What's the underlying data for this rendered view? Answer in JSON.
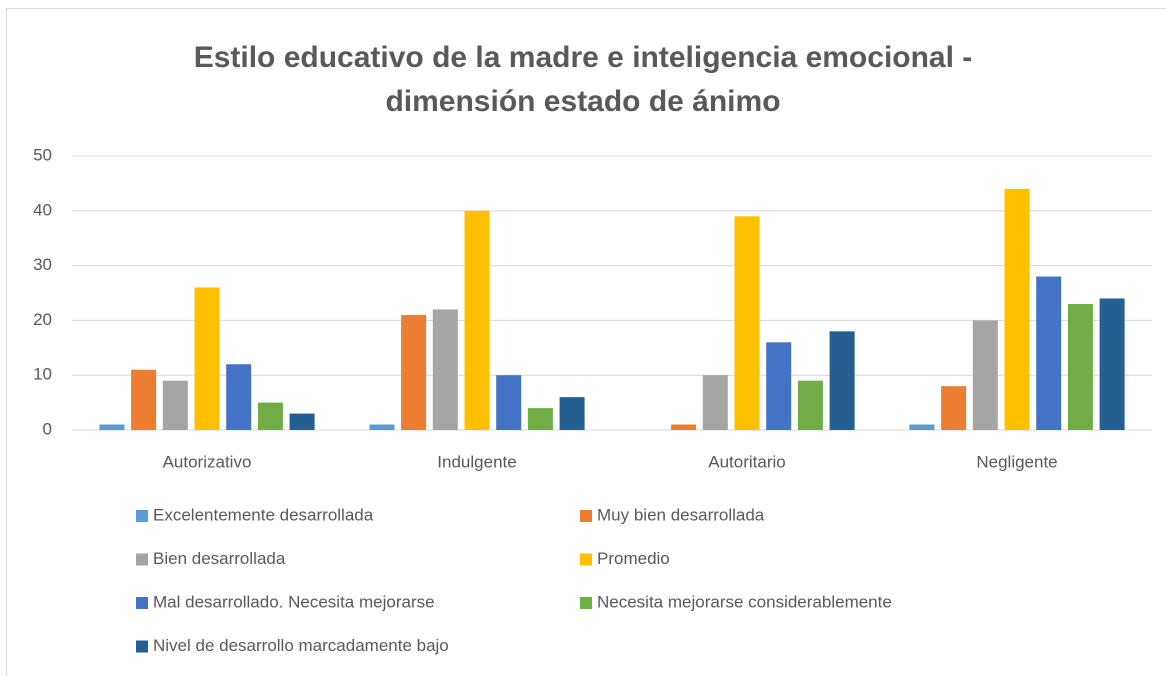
{
  "chart_data": {
    "type": "bar",
    "title": "Estilo educativo de la madre e inteligencia emocional - dimensión estado de ánimo",
    "categories": [
      "Autorizativo",
      "Indulgente",
      "Autoritario",
      "Negligente"
    ],
    "series": [
      {
        "name": "Excelentemente desarrollada",
        "color": "#5b9bd5",
        "values": [
          1,
          1,
          0,
          1
        ]
      },
      {
        "name": "Muy bien desarrollada",
        "color": "#ed7d31",
        "values": [
          11,
          21,
          1,
          8
        ]
      },
      {
        "name": "Bien desarrollada",
        "color": "#a5a5a5",
        "values": [
          9,
          22,
          10,
          20
        ]
      },
      {
        "name": "Promedio",
        "color": "#ffc000",
        "values": [
          26,
          40,
          39,
          44
        ]
      },
      {
        "name": "Mal desarrollado. Necesita mejorarse",
        "color": "#4472c4",
        "values": [
          12,
          10,
          16,
          28
        ]
      },
      {
        "name": "Necesita mejorarse considerablemente",
        "color": "#70ad47",
        "values": [
          5,
          4,
          9,
          23
        ]
      },
      {
        "name": "Nivel de desarrollo marcadamente bajo",
        "color": "#255e91",
        "values": [
          3,
          6,
          18,
          24
        ]
      }
    ],
    "ylim": [
      0,
      50
    ],
    "yticks": [
      0,
      10,
      20,
      30,
      40,
      50
    ],
    "grid": true,
    "legend": "bottom"
  }
}
